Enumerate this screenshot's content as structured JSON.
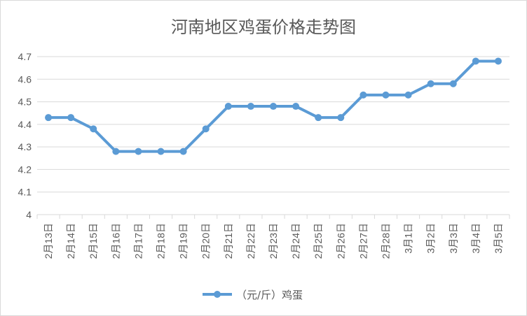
{
  "chart_data": {
    "type": "line",
    "title": "河南地区鸡蛋价格走势图",
    "categories": [
      "2月13日",
      "2月14日",
      "2月15日",
      "2月16日",
      "2月17日",
      "2月18日",
      "2月19日",
      "2月20日",
      "2月21日",
      "2月22日",
      "2月23日",
      "2月24日",
      "2月25日",
      "2月26日",
      "2月27日",
      "2月28日",
      "3月1日",
      "3月2日",
      "3月3日",
      "3月4日",
      "3月5日"
    ],
    "series": [
      {
        "name": "（元/斤）鸡蛋",
        "values": [
          4.43,
          4.43,
          4.38,
          4.28,
          4.28,
          4.28,
          4.28,
          4.38,
          4.48,
          4.48,
          4.48,
          4.48,
          4.43,
          4.43,
          4.53,
          4.53,
          4.53,
          4.58,
          4.58,
          4.68,
          4.68
        ]
      }
    ],
    "y_ticks": [
      "4.7",
      "4.6",
      "4.5",
      "4.4",
      "4.3",
      "4.2",
      "4.1",
      "4"
    ],
    "ylim": [
      4,
      4.7
    ],
    "grid": true,
    "legend_position": "bottom",
    "colors": {
      "line": "#5b9bd5",
      "grid": "#d9d9d9",
      "text": "#595959"
    }
  }
}
